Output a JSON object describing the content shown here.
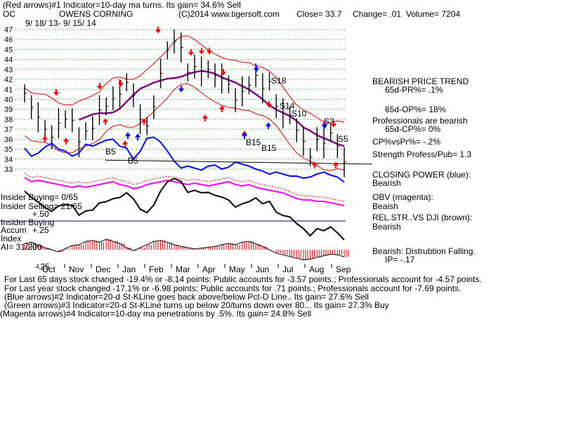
{
  "header": {
    "line1": "(Red arrows)#1 Indicator=10-day ma turns. Its gain= 34.6% Sell",
    "ticker": "OC",
    "company": "OWENS CORNING",
    "copyright": "(C)2014 www.tigersoft.com",
    "close": "Close=  33.7",
    "change": "Change= .01",
    "volume": "Volume= 7204",
    "date_range": "9/ 18/ 13-  9/ 15/ 14"
  },
  "colors": {
    "price_bars": "#000000",
    "bands": "#cc0000",
    "ma_purple": "#800080",
    "closing_power": "#0000ff",
    "obv": "#ff00ff",
    "relstr": "#000000",
    "accum": "#cc0000",
    "red_arrow": "#ff0000",
    "blue_arrow": "#0000ff",
    "grid": "#00aa00"
  },
  "chart_data": {
    "type": "line",
    "title": "OWENS CORNING",
    "y_ticks": [
      47,
      46,
      45,
      44,
      43,
      42,
      41,
      40,
      39,
      38,
      37,
      36,
      35,
      34,
      33
    ],
    "ylim": [
      33,
      47.5
    ],
    "x_tick_labels": [
      "Oct",
      "Nov",
      "Dec",
      "Jan",
      "Feb",
      "Mar",
      "Apr",
      "May",
      "Jun",
      "Jul",
      "Aug",
      "Sep"
    ],
    "series": [
      {
        "values": [
          40.6,
          39.2,
          38.2,
          37.0,
          36.2,
          37.6,
          38.0,
          37.9,
          35.7,
          36.8,
          37.1,
          38.9,
          39.3,
          40.1,
          40.5,
          41.7,
          40.4,
          38.0,
          37.3,
          39.2,
          42.6,
          44.9,
          45.8,
          45.2,
          42.7,
          43.3,
          42.8,
          43.0,
          42.4,
          42.1,
          41.5,
          39.9,
          40.8,
          41.4,
          42.4,
          41.1,
          41.8,
          39.3,
          38.6,
          38.4,
          36.9,
          35.8,
          34.2,
          36.0,
          35.6,
          36.6,
          35.3,
          33.7
        ]
      }
    ],
    "indicators_values": {
      "closing_power": [
        35.1,
        34.3,
        34.6,
        35.2,
        35.6,
        35.0,
        34.8,
        34.3,
        34.6,
        35.5,
        35.3,
        35.6,
        35.9,
        36.0,
        35.3,
        35.1,
        34.0,
        34.8,
        36.1,
        36.2,
        35.7,
        34.8,
        33.8,
        33.1,
        33.3,
        33.1,
        32.9,
        33.3,
        33.4,
        33.0,
        33.2,
        33.7,
        33.5,
        33.3,
        33.0,
        32.8,
        32.5,
        32.7,
        32.5,
        32.3,
        32.3,
        32.1,
        32.2,
        32.5,
        32.7,
        32.4,
        32.2,
        31.7
      ],
      "obv": [
        0.95,
        0.92,
        0.93,
        0.92,
        0.91,
        0.9,
        0.89,
        0.88,
        0.89,
        0.88,
        0.89,
        0.9,
        0.91,
        0.92,
        0.9,
        0.89,
        0.87,
        0.88,
        0.9,
        0.91,
        0.92,
        0.93,
        0.92,
        0.91,
        0.9,
        0.91,
        0.9,
        0.89,
        0.9,
        0.91,
        0.92,
        0.9,
        0.89,
        0.9,
        0.88,
        0.87,
        0.86,
        0.85,
        0.84,
        0.82,
        0.8,
        0.79,
        0.79,
        0.78,
        0.78,
        0.77,
        0.76,
        0.75
      ],
      "accum": [
        0.15,
        0.18,
        0.1,
        0.05,
        0.0,
        -0.05,
        0.03,
        0.1,
        0.12,
        0.2,
        0.22,
        0.18,
        0.25,
        0.2,
        0.15,
        0.05,
        -0.02,
        0.05,
        0.12,
        0.2,
        0.22,
        0.18,
        0.12,
        0.08,
        0.05,
        0.02,
        0.04,
        0.06,
        0.08,
        0.12,
        0.15,
        0.12,
        0.18,
        0.2,
        0.14,
        0.08,
        0.0,
        -0.08,
        -0.12,
        -0.16,
        -0.2,
        -0.24,
        -0.22,
        -0.18,
        -0.14,
        -0.1,
        -0.12,
        -0.17
      ]
    },
    "annotations": [
      "B5",
      "B5",
      "B15",
      "B15",
      "S18",
      "S14",
      "S10",
      "S3",
      "S5"
    ]
  },
  "indicator_labels": {
    "insider_buying": "Insider Buying= 0/65",
    "insider_selling": "Insider Selling= 21/65",
    "plus50": "+.50",
    "insider_buying2": "Insider Buying",
    "accum": "Accum",
    "plus25": "+.25",
    "index": "Index",
    "ai": "AI= 31/200",
    "minus25": "-.25"
  },
  "right_panel": {
    "bearish_trend": "BEARISH PRICE TREND",
    "pr65": "65d-PR%= .1%",
    "op65": "65d-OP%= 18%",
    "pros_bearish": "Professionals are bearish",
    "cp65": "65d-CP%= 0%",
    "cpvspr": "CP%vsPr%= -.2%",
    "strength": "Strength Profess/Pub= 1.3",
    "closing_power": "CLOSING POWER (blue):",
    "closing_power_v": "Bearish",
    "obv": "OBV (magenta):",
    "obv_v": "Beaish",
    "relstr": "REL.STR..VS DJI (brown):",
    "relstr_v": "Bearish",
    "distribution": "Bearish: Distrubtion Falling.",
    "ip": "IP= -.17"
  },
  "footer": {
    "line1": "For Last 65 days stock changed -19.4% or -8.14 points:  Public accounts for -3.57 points.;  Professionals account for -4.57 points.",
    "line2": "For Last year stock changed -17.1% or -6.98 points:  Public accounts for  .71 points.;  Professionals account for -7.69 points.",
    "line3": "(Blue arrows)#2 Indicator=20-d St-KLine goes back above/below Pct-D Line.. Its gain= 27.6% Sell",
    "line4": "(Green arrows)#3 Indicator=20-d St-KLine turns up below 20/turns down over 80... Its gain= 27.3% Buy",
    "line5": "(Magenta arrows)#4 Indicator=10-day ma penetrations by .5%. Its gain= 24.8% Sell"
  }
}
